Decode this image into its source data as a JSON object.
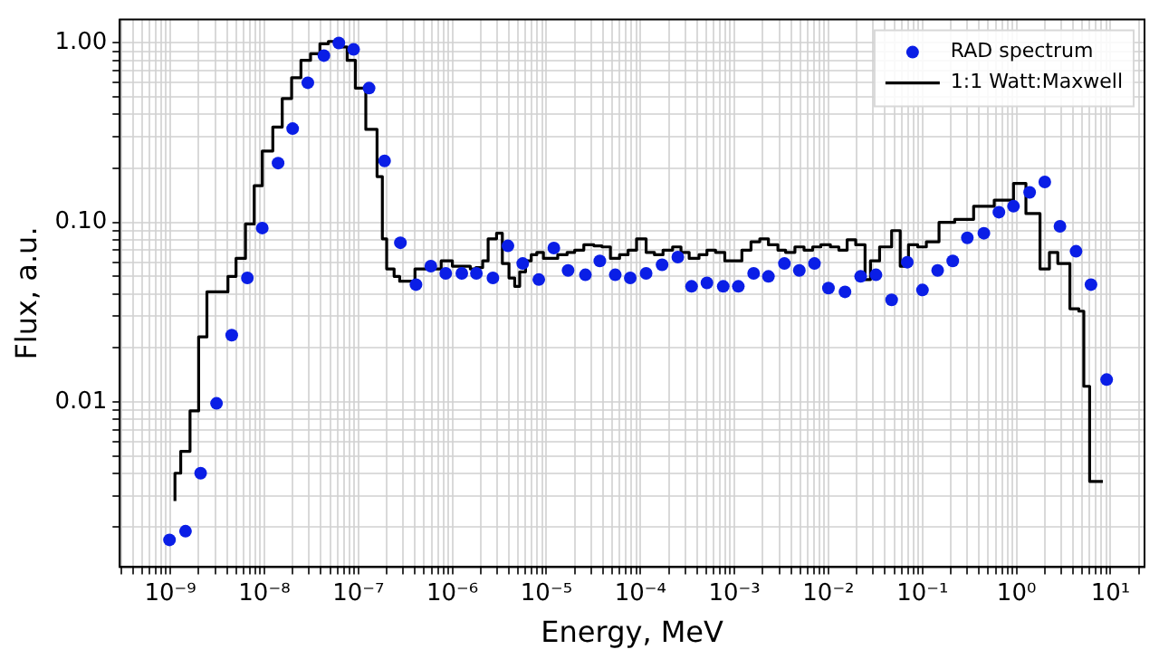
{
  "chart_data": {
    "type": "scatter",
    "xlabel": "Energy, MeV",
    "ylabel": "Flux, a.u.",
    "log": "xy",
    "grid": true,
    "legend": "top right",
    "xlim": [
      2.9e-10,
      23
    ],
    "ylim": [
      0.0012,
      1.35
    ],
    "xticks": [
      {
        "value": 3e-10,
        "label": null
      },
      {
        "value": 4e-10,
        "label": null
      },
      {
        "value": 5e-10,
        "label": null
      },
      {
        "value": 6e-10,
        "label": null
      },
      {
        "value": 7e-10,
        "label": null
      },
      {
        "value": 8e-10,
        "label": null
      },
      {
        "value": 9e-10,
        "label": null
      },
      {
        "value": 1e-09,
        "label": "10⁻⁹"
      },
      {
        "value": 2e-09,
        "label": null
      },
      {
        "value": 3e-09,
        "label": null
      },
      {
        "value": 4e-09,
        "label": null
      },
      {
        "value": 5e-09,
        "label": null
      },
      {
        "value": 6e-09,
        "label": null
      },
      {
        "value": 7e-09,
        "label": null
      },
      {
        "value": 8e-09,
        "label": null
      },
      {
        "value": 9e-09,
        "label": null
      },
      {
        "value": 1e-08,
        "label": "10⁻⁸"
      },
      {
        "value": 2e-08,
        "label": null
      },
      {
        "value": 3e-08,
        "label": null
      },
      {
        "value": 4e-08,
        "label": null
      },
      {
        "value": 5e-08,
        "label": null
      },
      {
        "value": 6e-08,
        "label": null
      },
      {
        "value": 7e-08,
        "label": null
      },
      {
        "value": 8e-08,
        "label": null
      },
      {
        "value": 9e-08,
        "label": null
      },
      {
        "value": 1e-07,
        "label": "10⁻⁷"
      },
      {
        "value": 2e-07,
        "label": null
      },
      {
        "value": 3e-07,
        "label": null
      },
      {
        "value": 4e-07,
        "label": null
      },
      {
        "value": 5e-07,
        "label": null
      },
      {
        "value": 6e-07,
        "label": null
      },
      {
        "value": 7e-07,
        "label": null
      },
      {
        "value": 8e-07,
        "label": null
      },
      {
        "value": 9e-07,
        "label": null
      },
      {
        "value": 1e-06,
        "label": "10⁻⁶"
      },
      {
        "value": 2e-06,
        "label": null
      },
      {
        "value": 3e-06,
        "label": null
      },
      {
        "value": 4e-06,
        "label": null
      },
      {
        "value": 5e-06,
        "label": null
      },
      {
        "value": 6e-06,
        "label": null
      },
      {
        "value": 7e-06,
        "label": null
      },
      {
        "value": 8e-06,
        "label": null
      },
      {
        "value": 9e-06,
        "label": null
      },
      {
        "value": 1e-05,
        "label": "10⁻⁵"
      },
      {
        "value": 2e-05,
        "label": null
      },
      {
        "value": 3e-05,
        "label": null
      },
      {
        "value": 4e-05,
        "label": null
      },
      {
        "value": 5e-05,
        "label": null
      },
      {
        "value": 6e-05,
        "label": null
      },
      {
        "value": 7e-05,
        "label": null
      },
      {
        "value": 8e-05,
        "label": null
      },
      {
        "value": 9e-05,
        "label": null
      },
      {
        "value": 0.0001,
        "label": "10⁻⁴"
      },
      {
        "value": 0.0002,
        "label": null
      },
      {
        "value": 0.0003,
        "label": null
      },
      {
        "value": 0.0004,
        "label": null
      },
      {
        "value": 0.0005,
        "label": null
      },
      {
        "value": 0.0006,
        "label": null
      },
      {
        "value": 0.0007,
        "label": null
      },
      {
        "value": 0.0008,
        "label": null
      },
      {
        "value": 0.0009,
        "label": null
      },
      {
        "value": 0.001,
        "label": "10⁻³"
      },
      {
        "value": 0.002,
        "label": null
      },
      {
        "value": 0.003,
        "label": null
      },
      {
        "value": 0.004,
        "label": null
      },
      {
        "value": 0.005,
        "label": null
      },
      {
        "value": 0.006,
        "label": null
      },
      {
        "value": 0.007,
        "label": null
      },
      {
        "value": 0.008,
        "label": null
      },
      {
        "value": 0.009,
        "label": null
      },
      {
        "value": 0.01,
        "label": "10⁻²"
      },
      {
        "value": 0.02,
        "label": null
      },
      {
        "value": 0.03,
        "label": null
      },
      {
        "value": 0.04,
        "label": null
      },
      {
        "value": 0.05,
        "label": null
      },
      {
        "value": 0.06,
        "label": null
      },
      {
        "value": 0.07,
        "label": null
      },
      {
        "value": 0.08,
        "label": null
      },
      {
        "value": 0.09,
        "label": null
      },
      {
        "value": 0.1,
        "label": "10⁻¹"
      },
      {
        "value": 0.2,
        "label": null
      },
      {
        "value": 0.3,
        "label": null
      },
      {
        "value": 0.4,
        "label": null
      },
      {
        "value": 0.5,
        "label": null
      },
      {
        "value": 0.6,
        "label": null
      },
      {
        "value": 0.7,
        "label": null
      },
      {
        "value": 0.8,
        "label": null
      },
      {
        "value": 0.9,
        "label": null
      },
      {
        "value": 1,
        "label": "10⁰"
      },
      {
        "value": 2,
        "label": null
      },
      {
        "value": 3,
        "label": null
      },
      {
        "value": 4,
        "label": null
      },
      {
        "value": 5,
        "label": null
      },
      {
        "value": 6,
        "label": null
      },
      {
        "value": 7,
        "label": null
      },
      {
        "value": 8,
        "label": null
      },
      {
        "value": 9,
        "label": null
      },
      {
        "value": 10,
        "label": "10¹"
      },
      {
        "value": 20,
        "label": null
      }
    ],
    "yticks": [
      {
        "value": 0.002,
        "label": null
      },
      {
        "value": 0.003,
        "label": null
      },
      {
        "value": 0.004,
        "label": null
      },
      {
        "value": 0.005,
        "label": null
      },
      {
        "value": 0.006,
        "label": null
      },
      {
        "value": 0.007,
        "label": null
      },
      {
        "value": 0.008,
        "label": null
      },
      {
        "value": 0.009,
        "label": null
      },
      {
        "value": 0.01,
        "label": "0.01"
      },
      {
        "value": 0.02,
        "label": null
      },
      {
        "value": 0.03,
        "label": null
      },
      {
        "value": 0.04,
        "label": null
      },
      {
        "value": 0.05,
        "label": null
      },
      {
        "value": 0.06,
        "label": null
      },
      {
        "value": 0.07,
        "label": null
      },
      {
        "value": 0.08,
        "label": null
      },
      {
        "value": 0.09,
        "label": null
      },
      {
        "value": 0.1,
        "label": "0.10"
      },
      {
        "value": 0.2,
        "label": null
      },
      {
        "value": 0.3,
        "label": null
      },
      {
        "value": 0.4,
        "label": null
      },
      {
        "value": 0.5,
        "label": null
      },
      {
        "value": 0.6,
        "label": null
      },
      {
        "value": 0.7,
        "label": null
      },
      {
        "value": 0.8,
        "label": null
      },
      {
        "value": 0.9,
        "label": null
      },
      {
        "value": 1,
        "label": "1.00"
      }
    ],
    "series": [
      {
        "name": "RAD spectrum",
        "marker": "circle",
        "color": "#0a1ee6",
        "x": [
          9.8e-10,
          1.45e-09,
          2.1e-09,
          3.1e-09,
          4.5e-09,
          6.6e-09,
          9.5e-09,
          1.4e-08,
          2e-08,
          2.9e-08,
          4.3e-08,
          6.2e-08,
          8.9e-08,
          1.3e-07,
          1.9e-07,
          2.8e-07,
          4.1e-07,
          5.9e-07,
          8.5e-07,
          1.26e-06,
          1.8e-06,
          2.7e-06,
          3.9e-06,
          5.6e-06,
          8.3e-06,
          1.2e-05,
          1.7e-05,
          2.6e-05,
          3.7e-05,
          5.4e-05,
          7.8e-05,
          0.000115,
          0.00017,
          0.00025,
          0.00035,
          0.00051,
          0.00076,
          0.0011,
          0.0016,
          0.0023,
          0.0034,
          0.0049,
          0.0071,
          0.01,
          0.015,
          0.022,
          0.032,
          0.047,
          0.069,
          0.1,
          0.145,
          0.21,
          0.3,
          0.45,
          0.65,
          0.93,
          1.38,
          2.0,
          2.9,
          4.3,
          6.2,
          9.1
        ],
        "values": [
          0.0017,
          0.0019,
          0.004,
          0.0098,
          0.0235,
          0.049,
          0.093,
          0.214,
          0.333,
          0.6,
          0.85,
          1.0,
          0.92,
          0.56,
          0.22,
          0.077,
          0.045,
          0.057,
          0.052,
          0.052,
          0.052,
          0.049,
          0.074,
          0.059,
          0.048,
          0.072,
          0.054,
          0.051,
          0.061,
          0.051,
          0.049,
          0.052,
          0.058,
          0.064,
          0.044,
          0.046,
          0.044,
          0.044,
          0.052,
          0.05,
          0.059,
          0.054,
          0.059,
          0.043,
          0.041,
          0.05,
          0.051,
          0.037,
          0.06,
          0.042,
          0.054,
          0.061,
          0.082,
          0.087,
          0.114,
          0.123,
          0.147,
          0.168,
          0.095,
          0.069,
          0.045,
          0.0133
        ]
      },
      {
        "name": "1:1 Watt:Maxwell",
        "type": "step",
        "color": "#000000",
        "line_style": "solid",
        "x": [
          1.12e-09,
          1.29e-09,
          1.62e-09,
          2e-09,
          2.45e-09,
          4.1e-09,
          5e-09,
          6.3e-09,
          7.8e-09,
          9.5e-09,
          1.23e-08,
          1.55e-08,
          1.95e-08,
          2.45e-08,
          3.1e-08,
          3.9e-08,
          4.8e-08,
          6.2e-08,
          7.6e-08,
          9.3e-08,
          1.2e-07,
          1.58e-07,
          1.8e-07,
          2e-07,
          2.4e-07,
          2.75e-07,
          4e-07,
          7.6e-07,
          1e-06,
          1.55e-06,
          1.78e-06,
          2.1e-06,
          2.4e-06,
          2.95e-06,
          3.4e-06,
          4e-06,
          4.6e-06,
          5.2e-06,
          6e-06,
          6.9e-06,
          7.9e-06,
          9.3e-06,
          1.07e-05,
          1.32e-05,
          1.66e-05,
          2e-05,
          2.5e-05,
          3.2e-05,
          3.9e-05,
          4.8e-05,
          6e-05,
          7.4e-05,
          9.1e-05,
          0.000115,
          0.000141,
          0.000174,
          0.00022,
          0.00027,
          0.00033,
          0.00042,
          0.00051,
          0.00063,
          0.00079,
          0.00098,
          0.0012,
          0.0015,
          0.00186,
          0.0023,
          0.0029,
          0.0035,
          0.0044,
          0.0055,
          0.0068,
          0.0083,
          0.0105,
          0.0129,
          0.0158,
          0.0195,
          0.0245,
          0.028,
          0.035,
          0.047,
          0.058,
          0.071,
          0.089,
          0.11,
          0.15,
          0.22,
          0.35,
          0.58,
          0.93,
          1.26,
          1.78,
          2.24,
          2.75,
          3.7,
          4.6,
          5.2,
          6.0,
          7.5,
          8.3
        ],
        "values": [
          0.0028,
          0.004,
          0.0053,
          0.0089,
          0.023,
          0.041,
          0.05,
          0.063,
          0.098,
          0.16,
          0.25,
          0.34,
          0.49,
          0.64,
          0.8,
          0.87,
          0.99,
          1.02,
          0.95,
          0.8,
          0.56,
          0.33,
          0.18,
          0.081,
          0.055,
          0.05,
          0.047,
          0.055,
          0.061,
          0.057,
          0.055,
          0.056,
          0.061,
          0.081,
          0.087,
          0.059,
          0.049,
          0.044,
          0.053,
          0.061,
          0.066,
          0.068,
          0.063,
          0.063,
          0.066,
          0.068,
          0.07,
          0.075,
          0.074,
          0.073,
          0.063,
          0.066,
          0.07,
          0.081,
          0.068,
          0.066,
          0.07,
          0.073,
          0.068,
          0.063,
          0.066,
          0.07,
          0.068,
          0.061,
          0.061,
          0.07,
          0.078,
          0.081,
          0.075,
          0.07,
          0.068,
          0.073,
          0.07,
          0.073,
          0.075,
          0.073,
          0.07,
          0.08,
          0.075,
          0.048,
          0.061,
          0.073,
          0.09,
          0.057,
          0.075,
          0.073,
          0.078,
          0.1,
          0.104,
          0.123,
          0.133,
          0.165,
          0.112,
          0.055,
          0.068,
          0.059,
          0.033,
          0.032,
          0.0122,
          0.0036,
          0.0036
        ]
      }
    ]
  }
}
